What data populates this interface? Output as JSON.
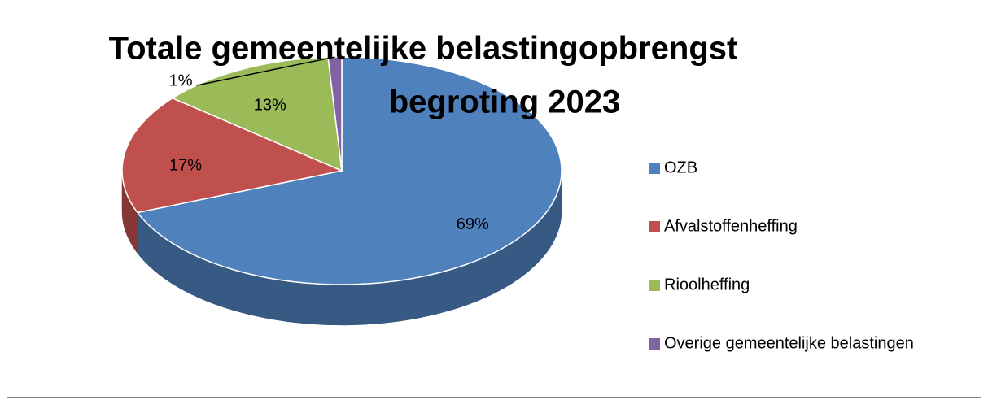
{
  "chart_data": {
    "type": "pie3d",
    "title": [
      "Totale gemeentelijke belastingopbrengst",
      "begroting 2023"
    ],
    "categories": [
      "OZB",
      "Afvalstoffenheffing",
      "Rioolheffing",
      "Overige gemeentelijke belastingen"
    ],
    "values": [
      69,
      17,
      13,
      1
    ],
    "value_labels": [
      "69%",
      "17%",
      "13%",
      "1%"
    ],
    "colors": [
      "#4f81bd",
      "#c0504d",
      "#9bbb59",
      "#8064a2"
    ],
    "legend": "right"
  }
}
